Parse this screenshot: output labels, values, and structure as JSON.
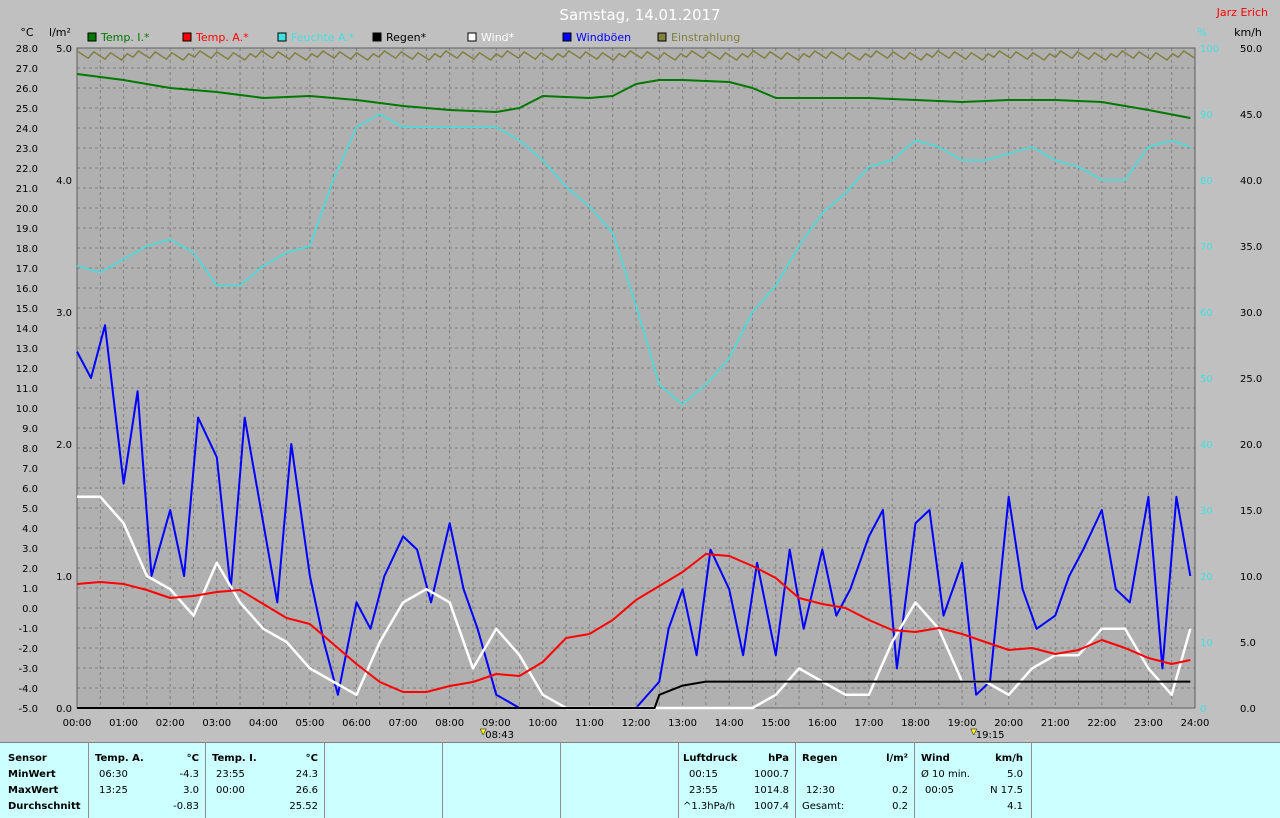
{
  "title": "Samstag, 14.01.2017",
  "author": "Jarz Erich",
  "units": {
    "temp": "°C",
    "rain": "l/m²",
    "hum": "%",
    "wind": "km/h"
  },
  "colors": {
    "bg": "#c0c0c0",
    "plot": "#b0b0b0",
    "temp_i": "#007800",
    "temp_a": "#ff0000",
    "hum": "#40e0e0",
    "rain": "#000000",
    "wind": "#ffffff",
    "gust": "#0000ff",
    "sun": "#808040"
  },
  "legend": [
    {
      "label": "Temp. I.*",
      "color": "#007800",
      "key": "temp_i"
    },
    {
      "label": "Temp. A.*",
      "color": "#ff0000",
      "key": "temp_a"
    },
    {
      "label": "Feuchte A.*",
      "color": "#40e0e0",
      "key": "hum"
    },
    {
      "label": "Regen*",
      "color": "#000000",
      "key": "rain"
    },
    {
      "label": "Wind*",
      "color": "#ffffff",
      "key": "wind"
    },
    {
      "label": "Windböen",
      "color": "#0000ff",
      "key": "gust"
    },
    {
      "label": "Einstrahlung",
      "color": "#808040",
      "key": "sun"
    }
  ],
  "chart_data": {
    "type": "line",
    "title": "Samstag, 14.01.2017",
    "grid": true,
    "x_ticks": [
      "00:00",
      "01:00",
      "02:00",
      "03:00",
      "04:00",
      "05:00",
      "06:00",
      "07:00",
      "08:00",
      "09:00",
      "10:00",
      "11:00",
      "12:00",
      "13:00",
      "14:00",
      "15:00",
      "16:00",
      "17:00",
      "18:00",
      "19:00",
      "20:00",
      "21:00",
      "22:00",
      "23:00",
      "24:00"
    ],
    "axes": {
      "temp": {
        "label": "°C",
        "min": -5,
        "max": 28,
        "ticks": [
          "28.0",
          "27.0",
          "26.0",
          "25.0",
          "24.0",
          "23.0",
          "22.0",
          "21.0",
          "20.0",
          "19.0",
          "18.0",
          "17.0",
          "16.0",
          "15.0",
          "14.0",
          "13.0",
          "12.0",
          "11.0",
          "10.0",
          "9.0",
          "8.0",
          "7.0",
          "6.0",
          "5.0",
          "4.0",
          "3.0",
          "2.0",
          "1.0",
          "0.0",
          "-1.0",
          "-2.0",
          "-3.0",
          "-4.0",
          "-5.0"
        ]
      },
      "rain": {
        "label": "l/m²",
        "min": 0,
        "max": 5,
        "ticks": [
          "5.0",
          "4.0",
          "3.0",
          "2.0",
          "1.0",
          "0.0"
        ]
      },
      "hum": {
        "label": "%",
        "min": 0,
        "max": 100,
        "ticks": [
          "100",
          "90",
          "80",
          "70",
          "60",
          "50",
          "40",
          "30",
          "20",
          "10",
          "0"
        ]
      },
      "wind": {
        "label": "km/h",
        "min": 0,
        "max": 50,
        "ticks": [
          "50.0",
          "45.0",
          "40.0",
          "35.0",
          "30.0",
          "25.0",
          "20.0",
          "15.0",
          "10.0",
          "5.0",
          "0.0"
        ]
      }
    },
    "sun_markers": [
      {
        "time": "08:43",
        "label": "08:43",
        "x": 8.72
      },
      {
        "time": "19:15",
        "label": "19:15",
        "x": 19.25
      }
    ],
    "series": [
      {
        "name": "Temp. I.*",
        "key": "temp_i",
        "axis": "temp",
        "x": [
          0,
          1,
          2,
          3,
          4,
          5,
          6,
          7,
          8,
          9,
          9.5,
          10,
          11,
          11.5,
          12,
          12.5,
          13,
          14,
          14.5,
          15,
          16,
          17,
          18,
          19,
          20,
          21,
          22,
          23,
          23.9
        ],
        "values": [
          26.7,
          26.4,
          26.0,
          25.8,
          25.5,
          25.6,
          25.4,
          25.1,
          24.9,
          24.8,
          25.0,
          25.6,
          25.5,
          25.6,
          26.2,
          26.4,
          26.4,
          26.3,
          26.0,
          25.5,
          25.5,
          25.5,
          25.4,
          25.3,
          25.4,
          25.4,
          25.3,
          24.9,
          24.5
        ]
      },
      {
        "name": "Temp. A.*",
        "key": "temp_a",
        "axis": "temp",
        "x": [
          0,
          0.5,
          1,
          1.5,
          2,
          2.5,
          3,
          3.5,
          4,
          4.5,
          5,
          5.5,
          6,
          6.5,
          7,
          7.5,
          8,
          8.5,
          9,
          9.5,
          10,
          10.5,
          11,
          11.5,
          12,
          12.5,
          13,
          13.5,
          14,
          14.5,
          15,
          15.5,
          16,
          16.5,
          17,
          17.5,
          18,
          18.5,
          19,
          19.5,
          20,
          20.5,
          21,
          21.5,
          22,
          22.5,
          23,
          23.5,
          23.9
        ],
        "values": [
          1.2,
          1.3,
          1.2,
          0.9,
          0.5,
          0.6,
          0.8,
          0.9,
          0.2,
          -0.5,
          -0.8,
          -1.8,
          -2.8,
          -3.7,
          -4.2,
          -4.2,
          -3.9,
          -3.7,
          -3.3,
          -3.4,
          -2.7,
          -1.5,
          -1.3,
          -0.6,
          0.4,
          1.1,
          1.8,
          2.7,
          2.6,
          2.1,
          1.5,
          0.5,
          0.2,
          0.0,
          -0.6,
          -1.1,
          -1.2,
          -1.0,
          -1.3,
          -1.7,
          -2.1,
          -2.0,
          -2.3,
          -2.1,
          -1.6,
          -2.0,
          -2.5,
          -2.8,
          -2.6
        ]
      },
      {
        "name": "Feuchte A.*",
        "key": "hum",
        "axis": "hum",
        "x": [
          0,
          0.5,
          1,
          1.5,
          2,
          2.5,
          3,
          3.5,
          4,
          4.5,
          5,
          5.5,
          6,
          6.5,
          7,
          7.5,
          8,
          8.5,
          9,
          9.5,
          10,
          10.5,
          11,
          11.5,
          12,
          12.5,
          13,
          13.5,
          14,
          14.5,
          15,
          15.5,
          16,
          16.5,
          17,
          17.5,
          18,
          18.5,
          19,
          19.5,
          20,
          20.5,
          21,
          21.5,
          22,
          22.5,
          23,
          23.5,
          23.9
        ],
        "values": [
          67,
          66,
          68,
          70,
          71,
          69,
          64,
          64,
          67,
          69,
          70,
          80,
          88,
          90,
          88,
          88,
          88,
          88,
          88,
          86,
          83,
          79,
          76,
          72,
          61,
          49,
          46,
          49,
          53,
          60,
          64,
          70,
          75,
          78,
          82,
          83,
          86,
          85,
          83,
          83,
          84,
          85,
          83,
          82,
          80,
          80,
          85,
          86,
          85
        ]
      },
      {
        "name": "Regen*",
        "key": "rain",
        "axis": "rain",
        "x": [
          0,
          12.4,
          12.45,
          12.5,
          13,
          13.5,
          14,
          15,
          16,
          17,
          18,
          19,
          20,
          21,
          22,
          23,
          23.9
        ],
        "values": [
          0,
          0,
          0.05,
          0.1,
          0.17,
          0.2,
          0.2,
          0.2,
          0.2,
          0.2,
          0.2,
          0.2,
          0.2,
          0.2,
          0.2,
          0.2,
          0.2
        ]
      },
      {
        "name": "Wind*",
        "key": "wind",
        "axis": "wind",
        "x": [
          0,
          0.5,
          1,
          1.5,
          2,
          2.5,
          3,
          3.5,
          4,
          4.5,
          5,
          5.5,
          6,
          6.5,
          7,
          7.5,
          8,
          8.5,
          9,
          9.5,
          10,
          10.5,
          11,
          12,
          13,
          14,
          14.5,
          15,
          15.5,
          16,
          16.5,
          17,
          17.5,
          18,
          18.5,
          19,
          19.5,
          20,
          20.5,
          21,
          21.5,
          22,
          22.5,
          23,
          23.5,
          23.9
        ],
        "values": [
          16,
          16,
          14,
          10,
          9,
          7,
          11,
          8,
          6,
          5,
          3,
          2,
          1,
          5,
          8,
          9,
          8,
          3,
          6,
          4,
          1,
          0,
          0,
          0,
          0,
          0,
          0,
          1,
          3,
          2,
          1,
          1,
          5,
          8,
          6,
          2,
          2,
          1,
          3,
          4,
          4,
          6,
          6,
          3,
          1,
          6
        ]
      },
      {
        "name": "Windböen",
        "key": "gust",
        "axis": "wind",
        "x": [
          0,
          0.3,
          0.6,
          1,
          1.3,
          1.6,
          2,
          2.3,
          2.6,
          3,
          3.3,
          3.6,
          4,
          4.3,
          4.6,
          5,
          5.3,
          5.6,
          6,
          6.3,
          6.6,
          7,
          7.3,
          7.6,
          8,
          8.3,
          8.6,
          9,
          9.5,
          10,
          11,
          12,
          12.5,
          12.7,
          13,
          13.3,
          13.6,
          14,
          14.3,
          14.6,
          15,
          15.3,
          15.6,
          16,
          16.3,
          16.6,
          17,
          17.3,
          17.6,
          18,
          18.3,
          18.6,
          19,
          19.3,
          19.6,
          20,
          20.3,
          20.6,
          21,
          21.3,
          21.6,
          22,
          22.3,
          22.6,
          23,
          23.3,
          23.6,
          23.9
        ],
        "values": [
          27,
          25,
          29,
          17,
          24,
          10,
          15,
          10,
          22,
          19,
          9,
          22,
          14,
          8,
          20,
          10,
          5,
          1,
          8,
          6,
          10,
          13,
          12,
          8,
          14,
          9,
          6,
          1,
          0,
          0,
          0,
          0,
          2,
          6,
          9,
          4,
          12,
          9,
          4,
          11,
          4,
          12,
          6,
          12,
          7,
          9,
          13,
          15,
          3,
          14,
          15,
          7,
          11,
          1,
          2,
          16,
          9,
          6,
          7,
          10,
          12,
          15,
          9,
          8,
          16,
          3,
          16,
          10
        ]
      }
    ]
  },
  "panel": {
    "sensor": {
      "header": "Sensor",
      "rows": [
        "MinWert",
        "MaxWert",
        "Durchschnitt"
      ]
    },
    "temp_a": {
      "header": "Temp. A.",
      "unit": "°C",
      "rows": [
        [
          "06:30",
          "-4.3"
        ],
        [
          "13:25",
          "3.0"
        ],
        [
          "",
          "-0.83"
        ]
      ]
    },
    "temp_i": {
      "header": "Temp. I.",
      "unit": "°C",
      "rows": [
        [
          "23:55",
          "24.3"
        ],
        [
          "00:00",
          "26.6"
        ],
        [
          "",
          "25.52"
        ]
      ]
    },
    "pressure": {
      "header": "Luftdruck",
      "unit": "hPa",
      "rows": [
        [
          "00:15",
          "1000.7"
        ],
        [
          "23:55",
          "1014.8"
        ],
        [
          "^1.3hPa/h",
          "1007.4"
        ]
      ]
    },
    "rain": {
      "header": "Regen",
      "unit": "l/m²",
      "rows": [
        [
          "",
          ""
        ],
        [
          "12:30",
          "0.2"
        ],
        [
          "Gesamt:",
          "0.2"
        ]
      ]
    },
    "wind": {
      "header": "Wind",
      "unit": "km/h",
      "rows": [
        [
          "Ø 10 min.",
          "5.0"
        ],
        [
          "00:05",
          "N 17.5"
        ],
        [
          "",
          "4.1"
        ]
      ]
    }
  }
}
